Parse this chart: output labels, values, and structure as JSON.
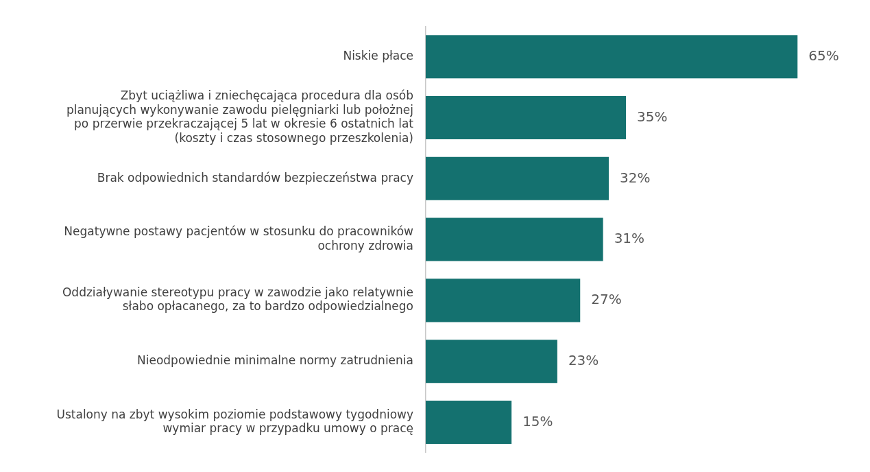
{
  "chart_data": {
    "type": "bar",
    "orientation": "horizontal",
    "categories": [
      "Niskie płace",
      "Zbyt uciążliwa i zniechęcająca procedura dla osób\nplanujących wykonywanie zawodu pielęgniarki lub położnej\npo przerwie przekraczającej 5 lat w okresie 6 ostatnich lat\n(koszty i czas stosownego przeszkolenia)",
      "Brak odpowiednich standardów bezpieczeństwa pracy",
      "Negatywne postawy pacjentów w stosunku do pracowników\nochrony zdrowia",
      "Oddziaływanie stereotypu pracy w zawodzie jako relatywnie\nsłabo opłacanego, za to bardzo odpowiedzialnego",
      "Nieodpowiednie minimalne normy zatrudnienia",
      "Ustalony na zbyt wysokim poziomie podstawowy tygodniowy\nwymiar pracy w przypadku umowy o pracę"
    ],
    "values": [
      65,
      35,
      32,
      31,
      27,
      23,
      15
    ],
    "value_labels": [
      "65%",
      "35%",
      "32%",
      "31%",
      "27%",
      "23%",
      "15%"
    ],
    "color": "#14716f",
    "tick_labels": "y",
    "grid": false,
    "legend": false
  }
}
